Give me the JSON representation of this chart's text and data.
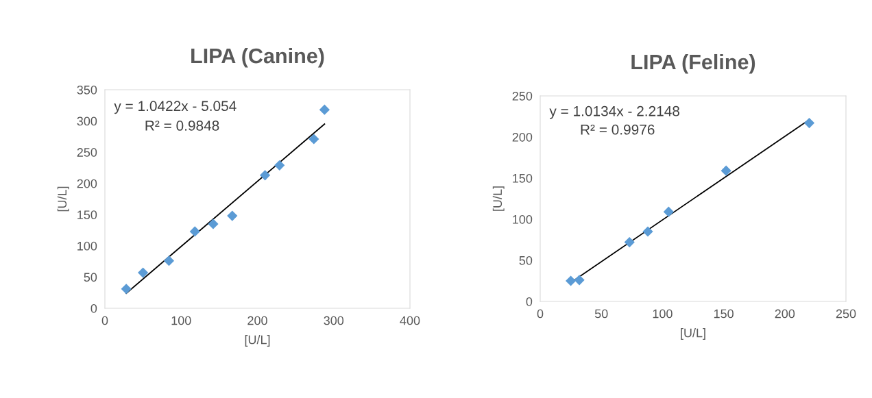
{
  "chart_data": [
    {
      "type": "scatter",
      "title": "LIPA (Canine)",
      "xlabel": "[U/L]",
      "ylabel": "[U/L]",
      "xlim": [
        0,
        400
      ],
      "xticks": [
        0,
        100,
        200,
        300,
        400
      ],
      "ylim": [
        0,
        350
      ],
      "yticks": [
        0,
        50,
        100,
        150,
        200,
        250,
        300,
        350
      ],
      "grid": false,
      "marker": "diamond",
      "annotations": [
        "y = 1.0422x - 5.054",
        "R² = 0.9848"
      ],
      "series": [
        {
          "type": "scatter",
          "color": "#5b9bd5",
          "x": [
            28,
            50,
            84,
            118,
            142,
            167,
            210,
            229,
            274,
            288
          ],
          "values": [
            31,
            57,
            76,
            123,
            135,
            148,
            213,
            229,
            271,
            318
          ]
        },
        {
          "type": "line",
          "color": "#000000",
          "marker": "none",
          "line_style": "solid",
          "x": [
            28,
            288
          ],
          "values": [
            24,
            295
          ]
        }
      ]
    },
    {
      "type": "scatter",
      "title": "LIPA (Feline)",
      "xlabel": "[U/L]",
      "ylabel": "[U/L]",
      "xlim": [
        0,
        250
      ],
      "xticks": [
        0,
        50,
        100,
        150,
        200,
        250
      ],
      "ylim": [
        0,
        250
      ],
      "yticks": [
        0,
        50,
        100,
        150,
        200,
        250
      ],
      "grid": false,
      "marker": "diamond",
      "annotations": [
        "y = 1.0134x - 2.2148",
        "R² = 0.9976"
      ],
      "series": [
        {
          "type": "scatter",
          "color": "#5b9bd5",
          "x": [
            25,
            32,
            73,
            88,
            105,
            152,
            220
          ],
          "values": [
            25,
            26,
            72,
            85,
            109,
            159,
            217
          ]
        },
        {
          "type": "line",
          "color": "#000000",
          "marker": "none",
          "line_style": "solid",
          "x": [
            25,
            220
          ],
          "values": [
            23,
            221
          ]
        }
      ]
    }
  ]
}
